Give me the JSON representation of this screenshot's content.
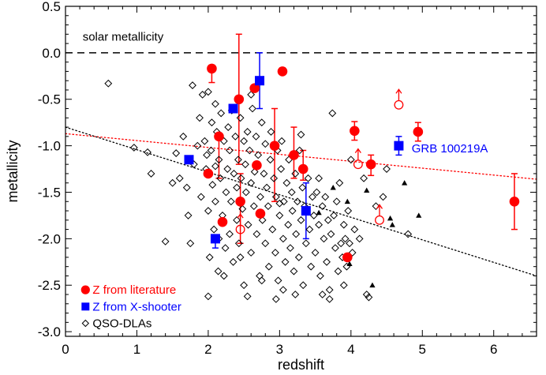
{
  "chart_data": {
    "type": "scatter",
    "xlabel": "redshift",
    "ylabel": "metallicity",
    "xlim": [
      0,
      6.6
    ],
    "ylim": [
      -3.05,
      0.5
    ],
    "x_ticks": [
      "0",
      "1",
      "2",
      "3",
      "4",
      "5",
      "6"
    ],
    "x_tick_values": [
      0,
      1,
      2,
      3,
      4,
      5,
      6
    ],
    "y_ticks": [
      "0.5",
      "0.0",
      "-0.5",
      "-1.0",
      "-1.5",
      "-2.0",
      "-2.5",
      "-3.0"
    ],
    "y_tick_values": [
      0.5,
      0.0,
      -0.5,
      -1.0,
      -1.5,
      -2.0,
      -2.5,
      -3.0
    ],
    "solar_line": {
      "y": 0.0,
      "label": "solar metallicity",
      "color": "#000000"
    },
    "annotations": [
      {
        "text": "GRB 100219A",
        "x": 4.85,
        "y": -1.07,
        "color": "#0000ff"
      }
    ],
    "legend": {
      "position": "bottom-left",
      "entries": [
        {
          "label": "Z from literature",
          "color": "#ff0000",
          "marker": "circle"
        },
        {
          "label": "Z from X-shooter",
          "color": "#0000ff",
          "marker": "square"
        },
        {
          "label": "QSO-DLAs",
          "color": "#000000",
          "marker": "diamond"
        }
      ]
    },
    "series": [
      {
        "name": "Z from literature",
        "color": "#ff0000",
        "marker": "filled-circle",
        "points": [
          {
            "x": 2.05,
            "y": -0.17,
            "yerr_lo": 0.15,
            "yerr_hi": 0.0
          },
          {
            "x": 2.0,
            "y": -1.3
          },
          {
            "x": 2.15,
            "y": -0.9,
            "yerr_lo": 0.45,
            "yerr_hi": 0.0
          },
          {
            "x": 2.2,
            "y": -1.82
          },
          {
            "x": 2.43,
            "y": -0.5,
            "yerr_lo": 0.7,
            "yerr_hi": 0.7
          },
          {
            "x": 2.45,
            "y": -1.6,
            "yerr_lo": 0.45,
            "yerr_hi": 0.3
          },
          {
            "x": 2.65,
            "y": -0.38
          },
          {
            "x": 2.68,
            "y": -1.21
          },
          {
            "x": 2.73,
            "y": -1.73
          },
          {
            "x": 2.93,
            "y": -1.0,
            "yerr_lo": 0.6,
            "yerr_hi": 0.4
          },
          {
            "x": 3.04,
            "y": -0.2
          },
          {
            "x": 3.2,
            "y": -1.1,
            "yerr_lo": 0.25,
            "yerr_hi": 0.3
          },
          {
            "x": 3.33,
            "y": -1.25,
            "yerr_lo": 0.12,
            "yerr_hi": 0.2
          },
          {
            "x": 3.95,
            "y": -2.2
          },
          {
            "x": 4.05,
            "y": -0.84,
            "yerr_lo": 0.1,
            "yerr_hi": 0.1
          },
          {
            "x": 4.28,
            "y": -1.2,
            "yerr_lo": 0.12,
            "yerr_hi": 0.1
          },
          {
            "x": 4.94,
            "y": -0.85,
            "yerr_lo": 0.1,
            "yerr_hi": 0.1
          },
          {
            "x": 6.29,
            "y": -1.6,
            "yerr_lo": 0.3,
            "yerr_hi": 0.3
          }
        ],
        "lower_limits": [
          {
            "x": 2.45,
            "y": -1.9
          },
          {
            "x": 4.1,
            "y": -1.2
          },
          {
            "x": 4.4,
            "y": -1.8
          },
          {
            "x": 4.67,
            "y": -0.56
          }
        ]
      },
      {
        "name": "Z from X-shooter",
        "color": "#0000ff",
        "marker": "filled-square",
        "points": [
          {
            "x": 1.73,
            "y": -1.15
          },
          {
            "x": 2.1,
            "y": -2.0,
            "yerr_lo": 0.1,
            "yerr_hi": 0.0
          },
          {
            "x": 2.35,
            "y": -0.6
          },
          {
            "x": 2.72,
            "y": -0.3,
            "yerr_lo": 0.3,
            "yerr_hi": 0.3
          },
          {
            "x": 3.37,
            "y": -1.7,
            "yerr_lo": 0.3,
            "yerr_hi": 0.3
          },
          {
            "x": 4.67,
            "y": -1.0,
            "yerr_lo": 0.1,
            "yerr_hi": 0.1
          }
        ]
      },
      {
        "name": "QSO-DLAs",
        "color": "#000000",
        "marker": "open-diamond",
        "points": [
          [
            0.6,
            -0.33
          ],
          [
            0.96,
            -1.02
          ],
          [
            1.15,
            -1.07
          ],
          [
            1.2,
            -1.3
          ],
          [
            1.4,
            -2.03
          ],
          [
            1.5,
            -1.4
          ],
          [
            1.55,
            -1.08
          ],
          [
            1.6,
            -1.35
          ],
          [
            1.65,
            -0.9
          ],
          [
            1.7,
            -1.45
          ],
          [
            1.72,
            -1.75
          ],
          [
            1.75,
            -2.05
          ],
          [
            1.8,
            -1.2
          ],
          [
            1.85,
            -1.0
          ],
          [
            1.88,
            -0.7
          ],
          [
            1.9,
            -1.55
          ],
          [
            1.92,
            -0.45
          ],
          [
            1.95,
            -0.95
          ],
          [
            1.97,
            -1.25
          ],
          [
            2.0,
            -0.42
          ],
          [
            2.0,
            -1.7
          ],
          [
            2.02,
            -2.2
          ],
          [
            2.04,
            -1.05
          ],
          [
            2.05,
            -0.75
          ],
          [
            2.06,
            -1.42
          ],
          [
            2.08,
            -1.9
          ],
          [
            2.1,
            -0.55
          ],
          [
            2.1,
            -1.6
          ],
          [
            2.12,
            -0.85
          ],
          [
            2.14,
            -2.35
          ],
          [
            2.15,
            -1.15
          ],
          [
            2.17,
            -1.35
          ],
          [
            2.18,
            -0.65
          ],
          [
            2.2,
            -1.75
          ],
          [
            2.22,
            -0.95
          ],
          [
            2.24,
            -2.1
          ],
          [
            2.25,
            -1.5
          ],
          [
            2.27,
            -1.25
          ],
          [
            2.28,
            -0.8
          ],
          [
            2.3,
            -1.95
          ],
          [
            2.3,
            -1.05
          ],
          [
            2.32,
            -1.6
          ],
          [
            2.33,
            -0.62
          ],
          [
            2.35,
            -2.25
          ],
          [
            2.36,
            -1.3
          ],
          [
            2.38,
            -0.9
          ],
          [
            2.4,
            -1.8
          ],
          [
            2.4,
            -1.45
          ],
          [
            2.42,
            -1.15
          ],
          [
            2.43,
            -2.05
          ],
          [
            2.45,
            -0.7
          ],
          [
            2.46,
            -1.35
          ],
          [
            2.48,
            -1.68
          ],
          [
            2.5,
            -0.95
          ],
          [
            2.5,
            -2.5
          ],
          [
            2.52,
            -1.2
          ],
          [
            2.53,
            -1.5
          ],
          [
            2.55,
            -0.85
          ],
          [
            2.56,
            -1.85
          ],
          [
            2.58,
            -1.05
          ],
          [
            2.6,
            -2.15
          ],
          [
            2.6,
            -1.4
          ],
          [
            2.62,
            -0.6
          ],
          [
            2.64,
            -1.65
          ],
          [
            2.65,
            -1.28
          ],
          [
            2.67,
            -0.9
          ],
          [
            2.68,
            -1.95
          ],
          [
            2.7,
            -1.1
          ],
          [
            2.72,
            -2.4
          ],
          [
            2.73,
            -1.55
          ],
          [
            2.75,
            -0.75
          ],
          [
            2.76,
            -1.8
          ],
          [
            2.78,
            -1.3
          ],
          [
            2.8,
            -0.98
          ],
          [
            2.8,
            -2.05
          ],
          [
            2.82,
            -1.45
          ],
          [
            2.84,
            -1.65
          ],
          [
            2.85,
            -2.3
          ],
          [
            2.87,
            -1.15
          ],
          [
            2.88,
            -0.85
          ],
          [
            2.9,
            -1.9
          ],
          [
            2.92,
            -1.35
          ],
          [
            2.94,
            -2.15
          ],
          [
            2.95,
            -1.55
          ],
          [
            2.97,
            -1.05
          ],
          [
            2.98,
            -2.45
          ],
          [
            3.0,
            -1.75
          ],
          [
            3.02,
            -1.25
          ],
          [
            3.03,
            -0.95
          ],
          [
            3.05,
            -2.0
          ],
          [
            3.06,
            -1.6
          ],
          [
            3.08,
            -2.25
          ],
          [
            3.1,
            -1.4
          ],
          [
            3.12,
            -1.85
          ],
          [
            3.13,
            -1.15
          ],
          [
            3.15,
            -2.1
          ],
          [
            3.17,
            -1.5
          ],
          [
            3.18,
            -1.7
          ],
          [
            3.2,
            -2.35
          ],
          [
            3.22,
            -1.3
          ],
          [
            3.23,
            -1.95
          ],
          [
            3.25,
            -1.6
          ],
          [
            3.27,
            -2.2
          ],
          [
            3.28,
            -1.05
          ],
          [
            3.3,
            -1.8
          ],
          [
            3.32,
            -1.45
          ],
          [
            3.33,
            -2.5
          ],
          [
            3.35,
            -1.65
          ],
          [
            3.37,
            -2.05
          ],
          [
            3.4,
            -1.35
          ],
          [
            3.42,
            -1.9
          ],
          [
            3.44,
            -2.3
          ],
          [
            3.46,
            -1.55
          ],
          [
            3.48,
            -1.75
          ],
          [
            3.5,
            -2.15
          ],
          [
            3.52,
            -1.5
          ],
          [
            3.55,
            -1.85
          ],
          [
            3.57,
            -2.4
          ],
          [
            3.6,
            -1.65
          ],
          [
            3.62,
            -2.0
          ],
          [
            3.64,
            -1.55
          ],
          [
            3.66,
            -2.25
          ],
          [
            3.68,
            -1.8
          ],
          [
            3.7,
            -2.55
          ],
          [
            3.72,
            -1.95
          ],
          [
            3.74,
            -0.65
          ],
          [
            3.76,
            -1.75
          ],
          [
            3.78,
            -2.1
          ],
          [
            3.8,
            -1.6
          ],
          [
            3.82,
            -2.35
          ],
          [
            3.84,
            -1.4
          ],
          [
            3.86,
            -2.05
          ],
          [
            3.88,
            -2.2
          ],
          [
            3.9,
            -1.85
          ],
          [
            3.92,
            -2.0
          ],
          [
            3.94,
            -2.3
          ],
          [
            3.96,
            -1.7
          ],
          [
            3.98,
            -2.05
          ],
          [
            4.0,
            -1.15
          ],
          [
            4.02,
            -2.15
          ],
          [
            4.05,
            -1.9
          ],
          [
            4.12,
            -2.0
          ],
          [
            4.18,
            -1.35
          ],
          [
            4.35,
            -1.65
          ],
          [
            4.45,
            -1.55
          ],
          [
            4.5,
            -1.25
          ],
          [
            4.8,
            -1.95
          ],
          [
            2.95,
            -2.65
          ],
          [
            3.05,
            -2.55
          ],
          [
            3.22,
            -2.6
          ],
          [
            3.6,
            -2.6
          ],
          [
            3.7,
            -2.65
          ],
          [
            3.9,
            -2.5
          ],
          [
            4.22,
            -2.6
          ],
          [
            4.25,
            -2.63
          ],
          [
            2.0,
            -2.62
          ],
          [
            2.22,
            -2.4
          ],
          [
            2.55,
            -2.62
          ],
          [
            2.75,
            -2.45
          ],
          [
            1.98,
            -1.1
          ],
          [
            2.1,
            -1.22
          ],
          [
            2.6,
            -0.45
          ],
          [
            1.78,
            -0.35
          ],
          [
            3.55,
            -1.35
          ],
          [
            3.3,
            -0.88
          ],
          [
            3.0,
            -1.62
          ],
          [
            2.15,
            -2.0
          ],
          [
            2.45,
            -2.2
          ]
        ]
      },
      {
        "name": "",
        "color": "#000000",
        "marker": "filled-triangle",
        "points": [
          [
            3.55,
            -1.72
          ],
          [
            3.75,
            -1.45
          ],
          [
            3.98,
            -2.27
          ],
          [
            4.22,
            -1.48
          ],
          [
            4.55,
            -1.78
          ],
          [
            4.58,
            -1.85
          ],
          [
            4.75,
            -1.4
          ],
          [
            4.95,
            -1.75
          ],
          [
            4.3,
            -2.5
          ],
          [
            3.95,
            -1.6
          ]
        ]
      }
    ],
    "fits": [
      {
        "color": "#ff0000",
        "style": "dotted",
        "x": [
          0,
          6.6
        ],
        "y": [
          -0.87,
          -1.36
        ]
      },
      {
        "color": "#000000",
        "style": "dotted",
        "x": [
          0,
          6.6
        ],
        "y": [
          -0.8,
          -2.4
        ]
      }
    ]
  }
}
